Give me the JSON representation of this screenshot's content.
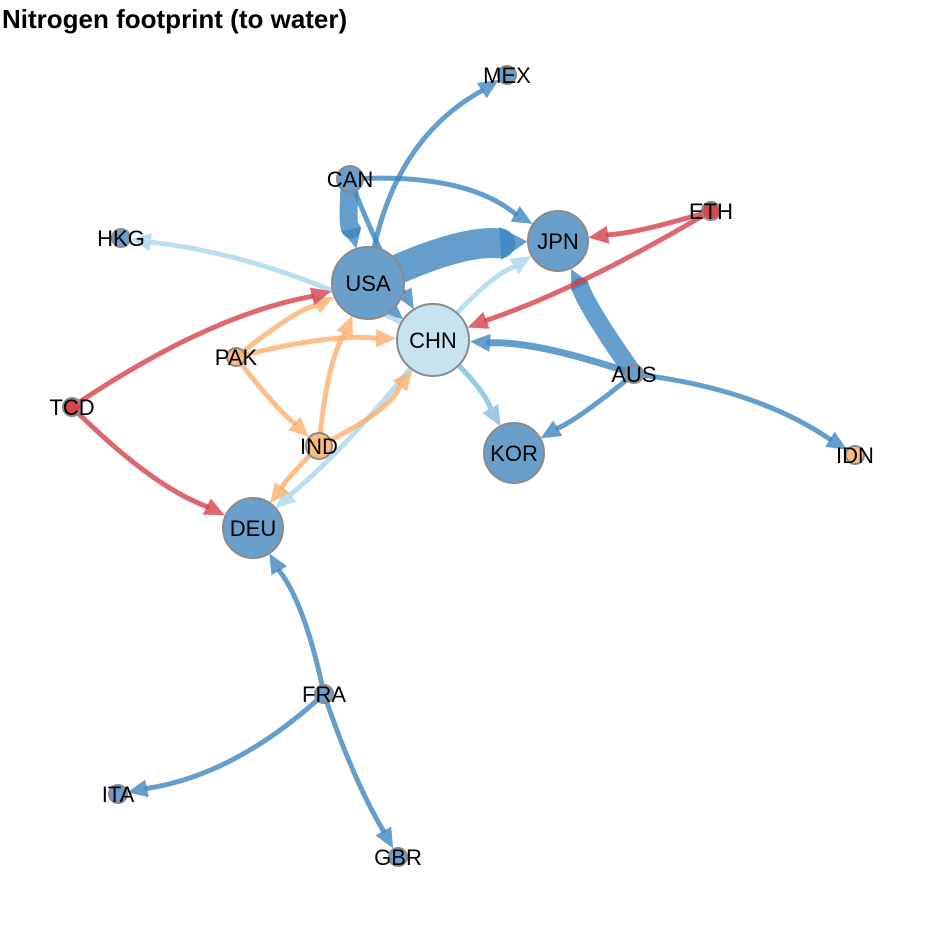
{
  "title": "Nitrogen footprint (to water)",
  "colors": {
    "dark_blue": "#3b82bf",
    "blue": "#6a9fcb",
    "light_blue": "#c7e3ef",
    "orange": "#fdbc7d",
    "red": "#d7474f",
    "node_stroke": "#8a8a8a",
    "edge_blue": "#3d86c0",
    "edge_light_blue": "#a9d6e8",
    "edge_orange": "#fdae6b",
    "edge_red": "#d6404a"
  },
  "nodes": [
    {
      "id": "USA",
      "label": "USA",
      "color": "blue",
      "size": "large"
    },
    {
      "id": "CHN",
      "label": "CHN",
      "color": "light_blue",
      "size": "large"
    },
    {
      "id": "JPN",
      "label": "JPN",
      "color": "blue",
      "size": "medium"
    },
    {
      "id": "DEU",
      "label": "DEU",
      "color": "blue",
      "size": "medium"
    },
    {
      "id": "KOR",
      "label": "KOR",
      "color": "blue",
      "size": "medium"
    },
    {
      "id": "CAN",
      "label": "CAN",
      "color": "blue",
      "size": "small"
    },
    {
      "id": "MEX",
      "label": "MEX",
      "color": "blue",
      "size": "tiny"
    },
    {
      "id": "HKG",
      "label": "HKG",
      "color": "blue",
      "size": "tiny"
    },
    {
      "id": "ETH",
      "label": "ETH",
      "color": "red",
      "size": "tiny"
    },
    {
      "id": "PAK",
      "label": "PAK",
      "color": "orange",
      "size": "tiny"
    },
    {
      "id": "TCD",
      "label": "TCD",
      "color": "red",
      "size": "tiny"
    },
    {
      "id": "IND",
      "label": "IND",
      "color": "orange",
      "size": "small"
    },
    {
      "id": "AUS",
      "label": "AUS",
      "color": "blue",
      "size": "tiny"
    },
    {
      "id": "IDN",
      "label": "IDN",
      "color": "orange",
      "size": "tiny"
    },
    {
      "id": "FRA",
      "label": "FRA",
      "color": "blue",
      "size": "tiny"
    },
    {
      "id": "ITA",
      "label": "ITA",
      "color": "blue",
      "size": "tiny"
    },
    {
      "id": "GBR",
      "label": "GBR",
      "color": "blue",
      "size": "tiny"
    }
  ],
  "edges": [
    {
      "from": "USA",
      "to": "JPN",
      "color": "edge_blue",
      "weight": "very_heavy"
    },
    {
      "from": "AUS",
      "to": "JPN",
      "color": "edge_blue",
      "weight": "heavy"
    },
    {
      "from": "CAN",
      "to": "USA",
      "color": "edge_blue",
      "weight": "heavy"
    },
    {
      "from": "USA",
      "to": "MEX",
      "color": "edge_blue",
      "weight": "light"
    },
    {
      "from": "CAN",
      "to": "JPN",
      "color": "edge_blue",
      "weight": "light"
    },
    {
      "from": "CAN",
      "to": "CHN",
      "color": "edge_blue",
      "weight": "light"
    },
    {
      "from": "USA",
      "to": "CHN",
      "color": "edge_blue",
      "weight": "light"
    },
    {
      "from": "AUS",
      "to": "CHN",
      "color": "edge_blue",
      "weight": "medium"
    },
    {
      "from": "AUS",
      "to": "KOR",
      "color": "edge_blue",
      "weight": "light"
    },
    {
      "from": "AUS",
      "to": "IDN",
      "color": "edge_blue",
      "weight": "light"
    },
    {
      "from": "CHN",
      "to": "KOR",
      "color": "edge_blue",
      "weight": "light"
    },
    {
      "from": "FRA",
      "to": "DEU",
      "color": "edge_blue",
      "weight": "light"
    },
    {
      "from": "FRA",
      "to": "ITA",
      "color": "edge_blue",
      "weight": "light"
    },
    {
      "from": "FRA",
      "to": "GBR",
      "color": "edge_blue",
      "weight": "light"
    },
    {
      "from": "CHN",
      "to": "HKG",
      "color": "edge_light_blue",
      "weight": "light"
    },
    {
      "from": "CHN",
      "to": "JPN",
      "color": "edge_light_blue",
      "weight": "light"
    },
    {
      "from": "CHN",
      "to": "DEU",
      "color": "edge_light_blue",
      "weight": "light"
    },
    {
      "from": "CHN",
      "to": "KOR",
      "color": "edge_light_blue",
      "weight": "light"
    },
    {
      "from": "PAK",
      "to": "CHN",
      "color": "edge_orange",
      "weight": "light"
    },
    {
      "from": "PAK",
      "to": "USA",
      "color": "edge_orange",
      "weight": "light"
    },
    {
      "from": "PAK",
      "to": "IND",
      "color": "edge_orange",
      "weight": "light"
    },
    {
      "from": "IND",
      "to": "USA",
      "color": "edge_orange",
      "weight": "light"
    },
    {
      "from": "IND",
      "to": "CHN",
      "color": "edge_orange",
      "weight": "light"
    },
    {
      "from": "IND",
      "to": "DEU",
      "color": "edge_orange",
      "weight": "light"
    },
    {
      "from": "ETH",
      "to": "JPN",
      "color": "edge_red",
      "weight": "light"
    },
    {
      "from": "ETH",
      "to": "CHN",
      "color": "edge_red",
      "weight": "light"
    },
    {
      "from": "TCD",
      "to": "USA",
      "color": "edge_red",
      "weight": "light"
    },
    {
      "from": "TCD",
      "to": "DEU",
      "color": "edge_red",
      "weight": "light"
    }
  ]
}
